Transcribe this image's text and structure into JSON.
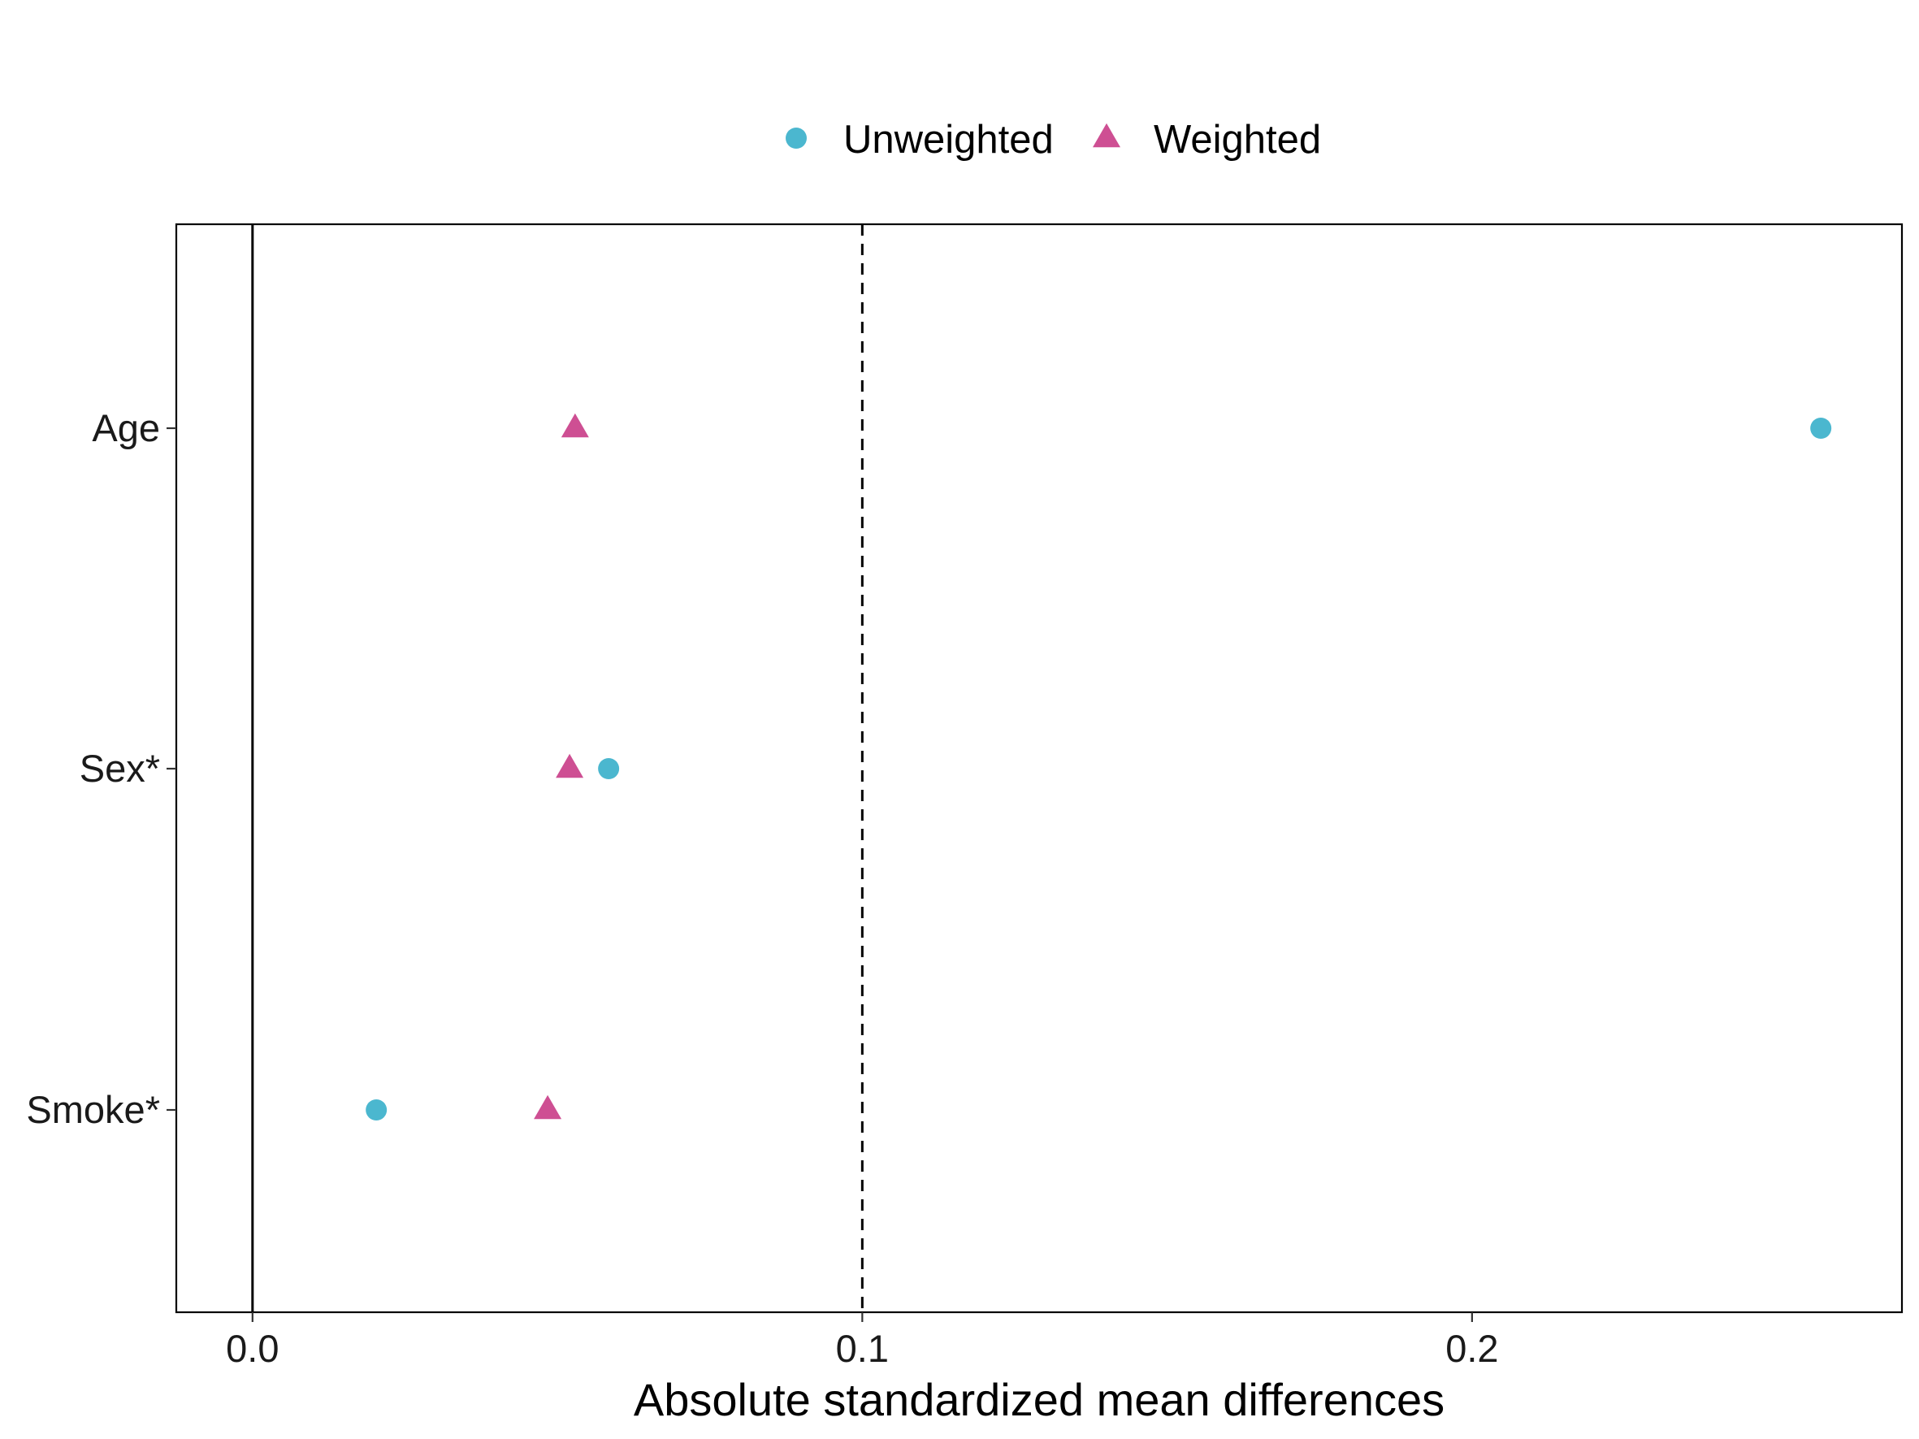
{
  "chart_data": {
    "type": "scatter",
    "xlabel": "Absolute standardized mean differences",
    "ylabel": "",
    "xlim": [
      -0.0125,
      0.2705
    ],
    "xticks": [
      0.0,
      0.1,
      0.2
    ],
    "xtick_labels": [
      "0.0",
      "0.1",
      "0.2"
    ],
    "categories": [
      "Age",
      "Sex*",
      "Smoke*"
    ],
    "threshold": 0.1,
    "reference_line": 0.0,
    "grid": false,
    "legend_position": "top",
    "series": [
      {
        "name": "Unweighted",
        "marker": "circle",
        "color": "#4BB7CF",
        "values": [
          0.2572,
          0.0584,
          0.0203
        ]
      },
      {
        "name": "Weighted",
        "marker": "triangle",
        "color": "#CE4F93",
        "values": [
          0.0529,
          0.052,
          0.0484
        ]
      }
    ]
  }
}
